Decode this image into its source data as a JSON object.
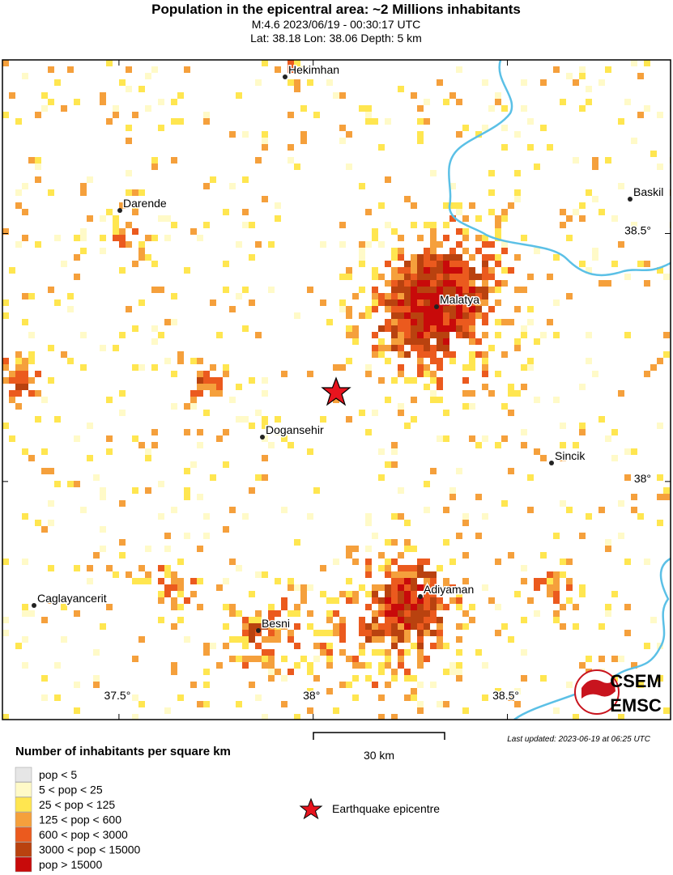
{
  "header": {
    "title": "Population in the epicentral area: ~2 Millions inhabitants",
    "subtitle": [
      "M:4.6 2023/06/19 - 00:30:17 UTC",
      "Lat: 38.18 Lon: 38.06 Depth: 5 km"
    ]
  },
  "map": {
    "xlim": [
      37.2,
      38.92
    ],
    "ylim": [
      37.52,
      38.85
    ],
    "lon_ticks": [
      {
        "value": 37.5,
        "label": "37.5°"
      },
      {
        "value": 38,
        "label": "38°"
      },
      {
        "value": 38.5,
        "label": "38.5°"
      }
    ],
    "lat_ticks": [
      {
        "value": 38.5,
        "label": "38.5°"
      },
      {
        "value": 38,
        "label": "38°"
      }
    ],
    "cities": [
      "Hekimhan",
      "Darende",
      "Baskil",
      "Malatya",
      "Dogansehir",
      "Sincik",
      "Caglayancerit",
      "Adiyaman",
      "Besni"
    ]
  },
  "legend": {
    "title": "Number of inhabitants per square km",
    "items": [
      {
        "label": "pop < 5",
        "color": "#e6e6e6"
      },
      {
        "label": "5 < pop < 25",
        "color": "#fffac8"
      },
      {
        "label": "25 < pop < 125",
        "color": "#ffe650"
      },
      {
        "label": "125 < pop < 600",
        "color": "#f5a03c"
      },
      {
        "label": "600 < pop < 3000",
        "color": "#eb5a1e"
      },
      {
        "label": "3000 < pop < 15000",
        "color": "#b9420f"
      },
      {
        "label": "pop > 15000",
        "color": "#c80a0a"
      }
    ]
  },
  "scale_bar": "30 km",
  "epicentre_label": "Earthquake epicentre",
  "last_updated": "Last updated: 2023-06-19 at 06:25 UTC",
  "logo": [
    "CSEM",
    "EMSC"
  ]
}
